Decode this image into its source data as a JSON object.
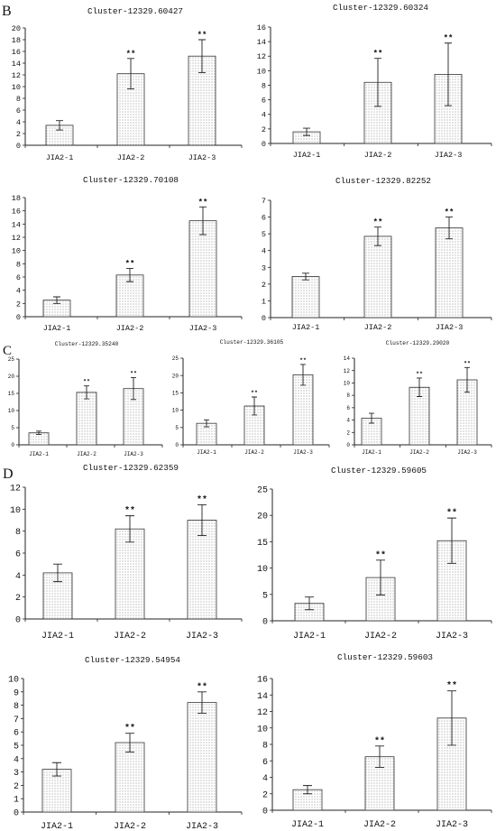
{
  "panel_labels": [
    "B",
    "C",
    "D"
  ],
  "chart_data": [
    {
      "type": "bar",
      "title": "Cluster-12329.60427",
      "categories": [
        "JIA2-1",
        "JIA2-2",
        "JIA2-3"
      ],
      "values": [
        3.4,
        12.2,
        15.2
      ],
      "errors": [
        0.8,
        2.6,
        2.8
      ],
      "significance": [
        null,
        "**",
        "**"
      ],
      "ylim": [
        0,
        20
      ],
      "yticks": [
        0,
        2,
        4,
        6,
        8,
        10,
        12,
        14,
        16,
        18,
        20
      ]
    },
    {
      "type": "bar",
      "title": "Cluster-12329.60324",
      "categories": [
        "JIA2-1",
        "JIA2-2",
        "JIA2-3"
      ],
      "values": [
        1.6,
        8.4,
        9.5
      ],
      "errors": [
        0.5,
        3.3,
        4.3
      ],
      "significance": [
        null,
        "**",
        "**"
      ],
      "ylim": [
        0,
        16
      ],
      "yticks": [
        0,
        2,
        4,
        6,
        8,
        10,
        12,
        14,
        16
      ]
    },
    {
      "type": "bar",
      "title": "Cluster-12329.70108",
      "categories": [
        "JIA2-1",
        "JIA2-2",
        "JIA2-3"
      ],
      "values": [
        2.5,
        6.3,
        14.5
      ],
      "errors": [
        0.5,
        1.0,
        2.1
      ],
      "significance": [
        null,
        "**",
        "**"
      ],
      "ylim": [
        0,
        18
      ],
      "yticks": [
        0,
        2,
        4,
        6,
        8,
        10,
        12,
        14,
        16,
        18
      ]
    },
    {
      "type": "bar",
      "title": "Cluster-12329.82252",
      "categories": [
        "JIA2-1",
        "JIA2-2",
        "JIA2-3"
      ],
      "values": [
        2.45,
        4.85,
        5.35
      ],
      "errors": [
        0.2,
        0.55,
        0.65
      ],
      "significance": [
        null,
        "**",
        "**"
      ],
      "ylim": [
        0,
        7
      ],
      "yticks": [
        0,
        1,
        2,
        3,
        4,
        5,
        6,
        7
      ]
    },
    {
      "type": "bar",
      "title": "Cluster-12329.35240",
      "categories": [
        "JIA2-1",
        "JIA2-2",
        "JIA2-3"
      ],
      "values": [
        3.5,
        15.3,
        16.4
      ],
      "errors": [
        0.5,
        1.9,
        3.2
      ],
      "significance": [
        null,
        "**",
        "**"
      ],
      "ylim": [
        0,
        25
      ],
      "yticks": [
        0,
        5,
        10,
        15,
        20,
        25
      ]
    },
    {
      "type": "bar",
      "title": "Cluster-12329.36105",
      "categories": [
        "JIA2-1",
        "JIA2-2",
        "JIA2-3"
      ],
      "values": [
        6.2,
        11.2,
        20.2
      ],
      "errors": [
        1.0,
        2.6,
        3.0
      ],
      "significance": [
        null,
        "**",
        "**"
      ],
      "ylim": [
        0,
        25
      ],
      "yticks": [
        0,
        5,
        10,
        15,
        20,
        25
      ]
    },
    {
      "type": "bar",
      "title": "Cluster-12329.29020",
      "categories": [
        "JIA2-1",
        "JIA2-2",
        "JIA2-3"
      ],
      "values": [
        4.3,
        9.3,
        10.5
      ],
      "errors": [
        0.8,
        1.5,
        2.0
      ],
      "significance": [
        null,
        "**",
        "**"
      ],
      "ylim": [
        0,
        14
      ],
      "yticks": [
        0,
        2,
        4,
        6,
        8,
        10,
        12,
        14
      ]
    },
    {
      "type": "bar",
      "title": "Cluster-12329.62359",
      "categories": [
        "JIA2-1",
        "JIA2-2",
        "JIA2-3"
      ],
      "values": [
        4.2,
        8.2,
        9.0
      ],
      "errors": [
        0.8,
        1.2,
        1.4
      ],
      "significance": [
        null,
        "**",
        "**"
      ],
      "ylim": [
        0,
        12
      ],
      "yticks": [
        0,
        2,
        4,
        6,
        8,
        10,
        12
      ]
    },
    {
      "type": "bar",
      "title": "Cluster-12329.59605",
      "categories": [
        "JIA2-1",
        "JIA2-2",
        "JIA2-3"
      ],
      "values": [
        3.3,
        8.2,
        15.2
      ],
      "errors": [
        1.2,
        3.3,
        4.3
      ],
      "significance": [
        null,
        "**",
        "**"
      ],
      "ylim": [
        0,
        25
      ],
      "yticks": [
        0,
        5,
        10,
        15,
        20,
        25
      ]
    },
    {
      "type": "bar",
      "title": "Cluster-12329.54954",
      "categories": [
        "JIA2-1",
        "JIA2-2",
        "JIA2-3"
      ],
      "values": [
        3.2,
        5.2,
        8.2
      ],
      "errors": [
        0.5,
        0.7,
        0.8
      ],
      "significance": [
        null,
        "**",
        "**"
      ],
      "ylim": [
        0,
        10
      ],
      "yticks": [
        0,
        1,
        2,
        3,
        4,
        5,
        6,
        7,
        8,
        9,
        10
      ]
    },
    {
      "type": "bar",
      "title": "Cluster-12329.59603",
      "categories": [
        "JIA2-1",
        "JIA2-2",
        "JIA2-3"
      ],
      "values": [
        2.5,
        6.5,
        11.2
      ],
      "errors": [
        0.5,
        1.3,
        3.3
      ],
      "significance": [
        null,
        "**",
        "**"
      ],
      "ylim": [
        0,
        16
      ],
      "yticks": [
        0,
        2,
        4,
        6,
        8,
        10,
        12,
        14,
        16
      ]
    }
  ]
}
